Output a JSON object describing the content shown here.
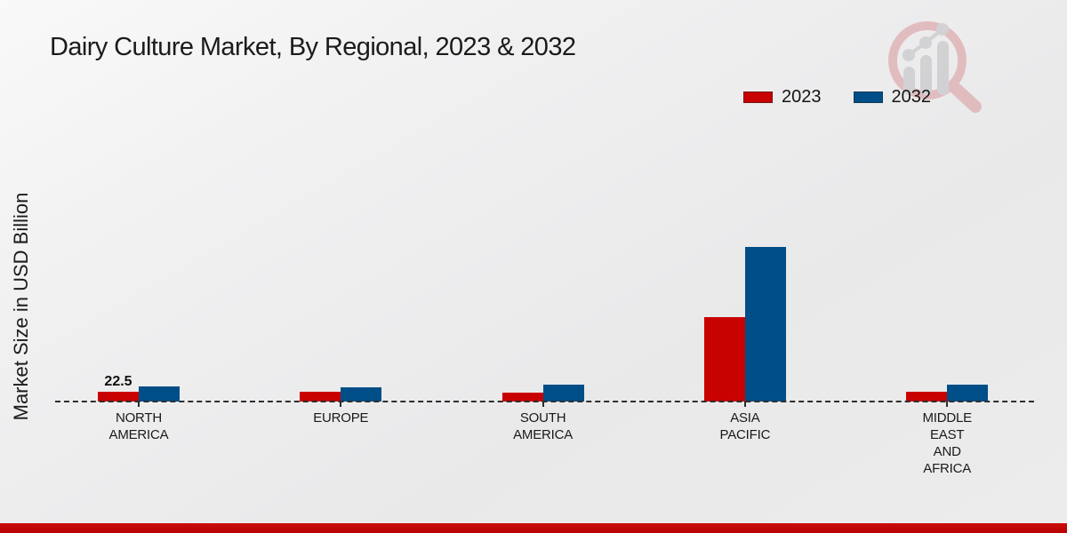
{
  "title": "Dairy Culture Market, By Regional, 2023 & 2032",
  "y_axis_label": "Market Size in USD Billion",
  "legend": {
    "items": [
      {
        "label": "2023",
        "color": "#c80101"
      },
      {
        "label": "2032",
        "color": "#004e87"
      }
    ]
  },
  "annotation": {
    "na_2023_value_label": "22.5"
  },
  "watermark": {
    "name": "magnifying-glass-bar-chart-logo"
  },
  "colors": {
    "series_2023": "#c80101",
    "series_2032": "#004e87",
    "footer_strip": "#c20404",
    "axis_line": "#2e2e2e",
    "text": "#1b1b1b",
    "background": "#ededee"
  },
  "chart_data": {
    "type": "bar",
    "title": "Dairy Culture Market, By Regional, 2023 & 2032",
    "xlabel": "",
    "ylabel": "Market Size in USD Billion",
    "unit": "USD Billion",
    "categories": [
      "NORTH AMERICA",
      "EUROPE",
      "SOUTH AMERICA",
      "ASIA PACIFIC",
      "MIDDLE EAST AND AFRICA"
    ],
    "category_display_lines": [
      [
        "NORTH",
        "AMERICA"
      ],
      [
        "EUROPE"
      ],
      [
        "SOUTH",
        "AMERICA"
      ],
      [
        "ASIA",
        "PACIFIC"
      ],
      [
        "MIDDLE",
        "EAST",
        "AND",
        "AFRICA"
      ]
    ],
    "series": [
      {
        "name": "2023",
        "color": "#c80101",
        "values": [
          22.5,
          22,
          20,
          195,
          22
        ]
      },
      {
        "name": "2032",
        "color": "#004e87",
        "values": [
          35,
          33,
          39,
          355,
          38
        ]
      }
    ],
    "data_labels": [
      [
        "22.5",
        null,
        null,
        null,
        null
      ],
      [
        null,
        null,
        null,
        null,
        null
      ]
    ],
    "ylim": [
      0,
      400
    ],
    "grid": false,
    "legend_position": "top-right",
    "baseline_style": "dashed",
    "y_axis_ticks_visible": false
  }
}
